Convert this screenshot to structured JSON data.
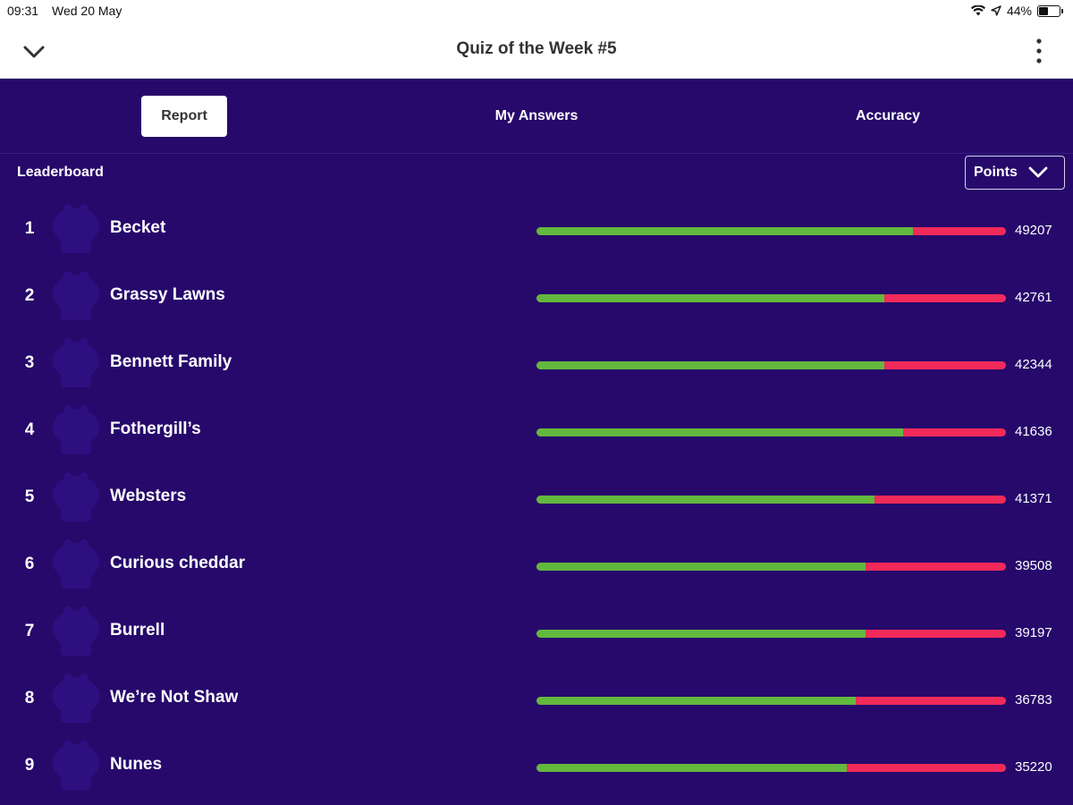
{
  "status": {
    "time": "09:31",
    "date": "Wed 20 May",
    "battery": "44%",
    "battery_level": 0.44
  },
  "header": {
    "title": "Quiz of the Week #5"
  },
  "tabs": [
    {
      "label": "Report",
      "active": true
    },
    {
      "label": "My Answers",
      "active": false
    },
    {
      "label": "Accuracy",
      "active": false
    }
  ],
  "leaderboard": {
    "title": "Leaderboard",
    "sort_label": "Points",
    "colors": {
      "correct": "#63b83e",
      "incorrect": "#f22a5a",
      "background": "#26096b",
      "avatar": "#2e0f80"
    },
    "rows": [
      {
        "rank": "1",
        "name": "Becket",
        "score": "49207",
        "correct_fraction": 0.802
      },
      {
        "rank": "2",
        "name": "Grassy Lawns",
        "score": "42761",
        "correct_fraction": 0.74
      },
      {
        "rank": "3",
        "name": "Bennett Family",
        "score": "42344",
        "correct_fraction": 0.74
      },
      {
        "rank": "4",
        "name": "Fothergill’s",
        "score": "41636",
        "correct_fraction": 0.78
      },
      {
        "rank": "5",
        "name": "Websters",
        "score": "41371",
        "correct_fraction": 0.72
      },
      {
        "rank": "6",
        "name": "Curious cheddar",
        "score": "39508",
        "correct_fraction": 0.7
      },
      {
        "rank": "7",
        "name": "Burrell",
        "score": "39197",
        "correct_fraction": 0.7
      },
      {
        "rank": "8",
        "name": "We’re Not Shaw",
        "score": "36783",
        "correct_fraction": 0.68
      },
      {
        "rank": "9",
        "name": "Nunes",
        "score": "35220",
        "correct_fraction": 0.66
      }
    ]
  }
}
